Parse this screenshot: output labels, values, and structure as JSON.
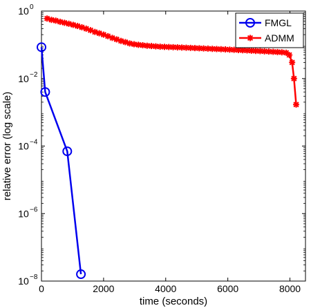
{
  "chart_data": {
    "type": "line",
    "xlabel": "time (seconds)",
    "ylabel": "relative error (log scale)",
    "xlim": [
      0,
      8500
    ],
    "ylim": [
      1e-08,
      1
    ],
    "yscale": "log",
    "grid": false,
    "legend_position": "top-right",
    "x_ticks": [
      0,
      2000,
      4000,
      6000,
      8000
    ],
    "x_tick_labels": [
      "0",
      "2000",
      "4000",
      "6000",
      "8000"
    ],
    "y_ticks": [
      1e-08,
      1e-06,
      0.0001,
      0.01,
      1
    ],
    "y_tick_labels": [
      {
        "base": "10",
        "exp": "−8"
      },
      {
        "base": "10",
        "exp": "−6"
      },
      {
        "base": "10",
        "exp": "−4"
      },
      {
        "base": "10",
        "exp": "−2"
      },
      {
        "base": "10",
        "exp": "0"
      }
    ],
    "series": [
      {
        "name": "FMGL",
        "color": "#0000ee",
        "marker": "circle",
        "x": [
          0,
          120,
          830,
          1270
        ],
        "y": [
          0.085,
          0.004,
          7e-05,
          1.6e-08
        ]
      },
      {
        "name": "ADMM",
        "color": "#ff0000",
        "marker": "asterisk",
        "x": [
          180,
          320,
          460,
          600,
          740,
          880,
          1020,
          1160,
          1300,
          1440,
          1580,
          1720,
          1860,
          2000,
          2140,
          2280,
          2420,
          2560,
          2700,
          2840,
          2980,
          3120,
          3260,
          3400,
          3540,
          3680,
          3820,
          3960,
          4100,
          4240,
          4380,
          4520,
          4660,
          4800,
          4940,
          5080,
          5220,
          5360,
          5500,
          5640,
          5780,
          5920,
          6060,
          6200,
          6340,
          6480,
          6620,
          6760,
          6900,
          7040,
          7180,
          7320,
          7460,
          7600,
          7740,
          7880,
          7980,
          8070,
          8130,
          8200
        ],
        "y": [
          0.6,
          0.55,
          0.52,
          0.48,
          0.45,
          0.42,
          0.39,
          0.36,
          0.33,
          0.3,
          0.27,
          0.24,
          0.22,
          0.2,
          0.18,
          0.16,
          0.145,
          0.13,
          0.12,
          0.11,
          0.104,
          0.1,
          0.097,
          0.094,
          0.092,
          0.09,
          0.088,
          0.087,
          0.086,
          0.085,
          0.084,
          0.083,
          0.082,
          0.081,
          0.08,
          0.079,
          0.078,
          0.077,
          0.076,
          0.075,
          0.074,
          0.073,
          0.072,
          0.071,
          0.07,
          0.069,
          0.068,
          0.067,
          0.066,
          0.065,
          0.064,
          0.063,
          0.062,
          0.061,
          0.06,
          0.058,
          0.05,
          0.03,
          0.01,
          0.0017
        ]
      }
    ]
  }
}
